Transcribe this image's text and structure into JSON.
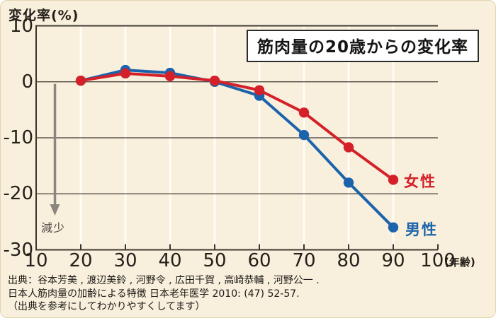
{
  "page": {
    "background_color": "#f8efdc",
    "border_color": "#e4d4b0",
    "text_color": "#25201a"
  },
  "chart_data": {
    "type": "line",
    "title": "筋肉量の20歳からの変化率",
    "ylabel": "変化率(%)",
    "x_axis_unit": "(年齢)",
    "x": [
      20,
      30,
      40,
      50,
      60,
      70,
      80,
      90
    ],
    "x_ticks": [
      10,
      20,
      30,
      40,
      50,
      60,
      70,
      80,
      90,
      100
    ],
    "y_ticks": [
      10,
      0,
      -10,
      -20,
      -30
    ],
    "xlim": [
      10,
      100
    ],
    "ylim": [
      -30,
      10
    ],
    "grid": {
      "horizontal_color": "#403a32",
      "vertical_color": "#fffdf4",
      "axis_color": "#3a352d"
    },
    "series": [
      {
        "name": "女性",
        "color": "#d42129",
        "values": [
          0.2,
          1.5,
          1.0,
          0.2,
          -1.5,
          -5.5,
          -11.7,
          -17.5
        ]
      },
      {
        "name": "男性",
        "color": "#1b63ab",
        "values": [
          0.2,
          2.1,
          1.6,
          0.0,
          -2.5,
          -9.5,
          -18.0,
          -26.0
        ]
      }
    ],
    "annotations": {
      "decrease_arrow_label": "減少",
      "arrow_color": "#8a867f"
    },
    "legend_position": "end-of-line"
  },
  "source": {
    "line1": "出典：谷本芳美 , 渡辺美鈴 , 河野令 , 広田千賀 , 高崎恭輔 , 河野公一 .",
    "line2": "日本人筋肉量の加齢による特徴  日本老年医学 2010: (47) 52-57.",
    "line3": "（出典を参考にしてわかりやすくしてます）"
  }
}
